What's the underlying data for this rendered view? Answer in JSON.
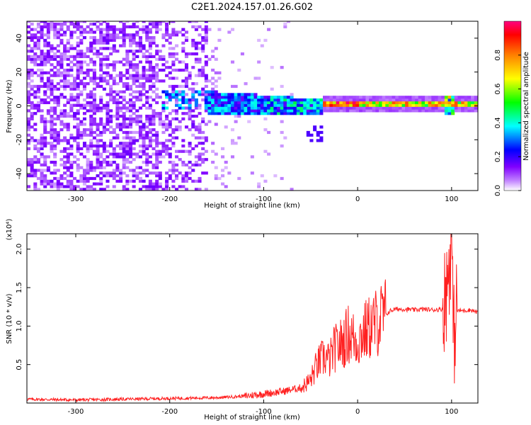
{
  "title": "C2E1.2024.157.01.26.G02",
  "chart_data": [
    {
      "type": "heatmap",
      "title": "C2E1.2024.157.01.26.G02",
      "xlabel": "Height of straight line (km)",
      "ylabel": "Frequency (Hz)",
      "xlim": [
        -352,
        128
      ],
      "ylim": [
        -50,
        50
      ],
      "x_ticks": [
        -300,
        -200,
        -100,
        0,
        100
      ],
      "y_ticks": [
        -40,
        -20,
        0,
        20,
        40
      ],
      "grid": false,
      "colorbar": {
        "label": "Normalized spectral amplitude",
        "range": [
          0,
          1
        ],
        "ticks": [
          0.0,
          0.2,
          0.4,
          0.6,
          0.8
        ],
        "colormap": [
          "#ffffff",
          "#c080ff",
          "#8000ff",
          "#0000ff",
          "#00ffff",
          "#00ff00",
          "#ffff00",
          "#ff8000",
          "#ff0000",
          "#ff0080"
        ]
      },
      "description_regions": [
        {
          "x_range": [
            -352,
            -160
          ],
          "freq_range": [
            -50,
            50
          ],
          "amplitude": [
            0.05,
            0.15
          ]
        },
        {
          "x_range": [
            -210,
            -160
          ],
          "freq_range": [
            -2,
            8
          ],
          "amplitude": [
            0.15,
            0.4
          ]
        },
        {
          "x_range": [
            -160,
            -40
          ],
          "freq_range": [
            -8,
            8
          ],
          "amplitude": [
            0.2,
            0.5
          ]
        },
        {
          "x_range": [
            -40,
            128
          ],
          "freq_range": [
            -2,
            3
          ],
          "amplitude": [
            0.4,
            1.0
          ]
        }
      ]
    },
    {
      "type": "line",
      "xlabel": "Height of straight line (km)",
      "ylabel": "SNR (10 * v/v)",
      "y_multiplier": "(x10⁴)",
      "xlim": [
        -352,
        128
      ],
      "ylim": [
        0.0,
        2.2
      ],
      "x_ticks": [
        -300,
        -200,
        -100,
        0,
        100
      ],
      "y_ticks": [
        0.5,
        1.0,
        1.5,
        2.0
      ],
      "color": "#ff2020",
      "series": [
        {
          "x": [
            -352,
            -300,
            -250,
            -200,
            -150,
            -120,
            -100,
            -80,
            -60,
            -50,
            -45,
            -40,
            -35,
            -30,
            -25,
            -20,
            -15,
            -10,
            -5,
            0,
            5,
            10,
            15,
            20,
            25,
            30,
            35,
            40,
            50,
            60,
            70,
            80,
            90,
            95,
            98,
            100,
            102,
            105,
            110,
            120,
            128
          ],
          "y": [
            0.05,
            0.04,
            0.05,
            0.06,
            0.07,
            0.09,
            0.12,
            0.15,
            0.2,
            0.3,
            0.45,
            0.55,
            0.6,
            0.55,
            0.7,
            0.75,
            0.8,
            0.9,
            0.85,
            0.8,
            0.9,
            0.95,
            1.0,
            1.05,
            1.1,
            1.15,
            1.2,
            1.22,
            1.22,
            1.21,
            1.22,
            1.21,
            1.22,
            1.5,
            1.9,
            2.2,
            0.8,
            1.2,
            1.2,
            1.21,
            1.18
          ]
        }
      ]
    }
  ]
}
